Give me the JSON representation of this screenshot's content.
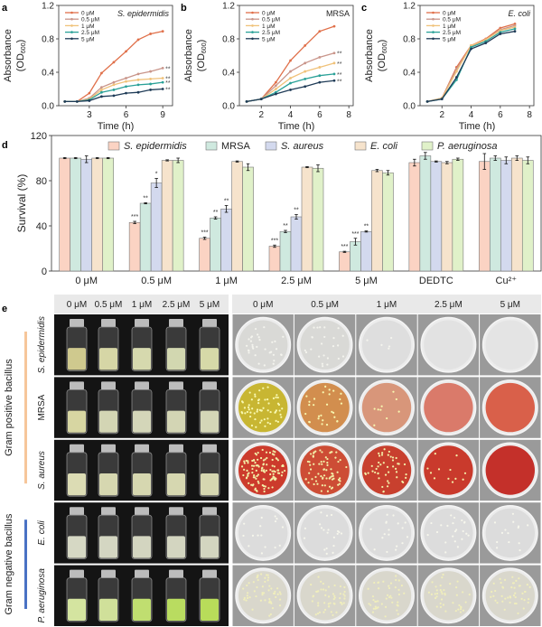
{
  "panel_labels": {
    "a": "a",
    "b": "b",
    "c": "c",
    "d": "d",
    "e": "e"
  },
  "line_legend": [
    "0 μM",
    "0.5 μM",
    "1 μM",
    "2.5 μM",
    "5 μM"
  ],
  "line_colors": [
    "#e0704a",
    "#c9958a",
    "#f0c27a",
    "#2aa198",
    "#1f3b57"
  ],
  "chart_data": [
    {
      "id": "a",
      "type": "line",
      "title": "S. epidermidis",
      "title_italic": true,
      "xlabel": "Time (h)",
      "ylabel": "Absorbance",
      "ylabel2": "(OD",
      "ylabel_sub": "600",
      "ylabel_close": ")",
      "xlim": [
        0.5,
        9.8
      ],
      "ylim": [
        0,
        1.2
      ],
      "xticks": [
        3,
        6,
        9
      ],
      "yticks": [
        0.0,
        0.4,
        0.8,
        1.2
      ],
      "ytick_labels": [
        "0.0",
        "0.4",
        "0.8",
        "1.2"
      ],
      "legend_position": "top-left",
      "x": [
        1,
        2,
        3,
        4,
        5,
        6,
        7,
        8,
        9
      ],
      "series": [
        {
          "name": "0 μM",
          "values": [
            0.05,
            0.05,
            0.15,
            0.39,
            0.52,
            0.65,
            0.79,
            0.86,
            0.89
          ],
          "annotation": ""
        },
        {
          "name": "0.5 μM",
          "values": [
            0.05,
            0.05,
            0.09,
            0.22,
            0.28,
            0.33,
            0.38,
            0.41,
            0.45
          ],
          "annotation": "**"
        },
        {
          "name": "1 μM",
          "values": [
            0.05,
            0.05,
            0.08,
            0.19,
            0.25,
            0.29,
            0.31,
            0.32,
            0.33
          ],
          "annotation": "**"
        },
        {
          "name": "2.5 μM",
          "values": [
            0.05,
            0.05,
            0.07,
            0.16,
            0.19,
            0.23,
            0.25,
            0.26,
            0.28
          ],
          "annotation": "**"
        },
        {
          "name": "5 μM",
          "values": [
            0.05,
            0.05,
            0.06,
            0.11,
            0.12,
            0.15,
            0.16,
            0.19,
            0.2
          ],
          "annotation": "**"
        }
      ]
    },
    {
      "id": "b",
      "type": "line",
      "title": "MRSA",
      "title_italic": false,
      "xlabel": "Time (h)",
      "ylabel": "Absorbance",
      "ylabel2": "(OD",
      "ylabel_sub": "600",
      "ylabel_close": ")",
      "xlim": [
        0.5,
        8.3
      ],
      "ylim": [
        0,
        1.2
      ],
      "xticks": [
        2,
        4,
        6,
        8
      ],
      "yticks": [
        0.0,
        0.4,
        0.8,
        1.2
      ],
      "ytick_labels": [
        "0.0",
        "0.4",
        "0.8",
        "1.2"
      ],
      "legend_position": "top-left",
      "x": [
        1,
        2,
        3,
        4,
        5,
        6,
        7
      ],
      "series": [
        {
          "name": "0 μM",
          "values": [
            0.05,
            0.08,
            0.28,
            0.54,
            0.72,
            0.89,
            0.95
          ],
          "annotation": ""
        },
        {
          "name": "0.5 μM",
          "values": [
            0.05,
            0.08,
            0.24,
            0.41,
            0.51,
            0.58,
            0.63
          ],
          "annotation": "**"
        },
        {
          "name": "1 μM",
          "values": [
            0.05,
            0.08,
            0.2,
            0.33,
            0.41,
            0.46,
            0.51
          ],
          "annotation": "**"
        },
        {
          "name": "2.5 μM",
          "values": [
            0.05,
            0.08,
            0.16,
            0.27,
            0.32,
            0.36,
            0.38
          ],
          "annotation": "**"
        },
        {
          "name": "5 μM",
          "values": [
            0.05,
            0.08,
            0.14,
            0.19,
            0.23,
            0.28,
            0.3
          ],
          "annotation": "**"
        }
      ]
    },
    {
      "id": "c",
      "type": "line",
      "title": "E. coli",
      "title_italic": true,
      "xlabel": "Time (h)",
      "ylabel": "Absorbance",
      "ylabel2": "(OD",
      "ylabel_sub": "600",
      "ylabel_close": ")",
      "xlim": [
        0.5,
        8.3
      ],
      "ylim": [
        0,
        1.2
      ],
      "xticks": [
        2,
        4,
        6,
        8
      ],
      "yticks": [
        0.0,
        0.4,
        0.8,
        1.2
      ],
      "ytick_labels": [
        "0.0",
        "0.4",
        "0.8",
        "1.2"
      ],
      "legend_position": "top-left",
      "x": [
        1,
        2,
        3,
        4,
        5,
        6,
        7
      ],
      "series": [
        {
          "name": "0 μM",
          "values": [
            0.05,
            0.09,
            0.46,
            0.72,
            0.8,
            0.93,
            0.98
          ],
          "annotation": ""
        },
        {
          "name": "0.5 μM",
          "values": [
            0.05,
            0.09,
            0.44,
            0.71,
            0.79,
            0.91,
            0.96
          ],
          "annotation": ""
        },
        {
          "name": "1 μM",
          "values": [
            0.05,
            0.09,
            0.41,
            0.72,
            0.79,
            0.9,
            0.94
          ],
          "annotation": ""
        },
        {
          "name": "2.5 μM",
          "values": [
            0.05,
            0.08,
            0.31,
            0.7,
            0.77,
            0.88,
            0.92
          ],
          "annotation": ""
        },
        {
          "name": "5 μM",
          "values": [
            0.05,
            0.08,
            0.34,
            0.68,
            0.75,
            0.86,
            0.89
          ],
          "annotation": ""
        }
      ]
    },
    {
      "id": "d",
      "type": "bar",
      "title": "",
      "xlabel": "",
      "ylabel": "Survival (%)",
      "ylim": [
        0,
        120
      ],
      "yticks": [
        0,
        40,
        80,
        120
      ],
      "categories": [
        "0 μM",
        "0.5 μM",
        "1 μM",
        "2.5 μM",
        "5 μM",
        "DEDTC",
        "Cu²⁺"
      ],
      "legend_position": "top",
      "series": [
        {
          "name": "S. epidermidis",
          "italic": true,
          "color": "#fbd3c3",
          "values": [
            100,
            43,
            29,
            22,
            17,
            96,
            97
          ],
          "errors": [
            0.5,
            1,
            1,
            1,
            0.5,
            3,
            7
          ],
          "annotations": [
            "",
            "***",
            "***",
            "***",
            "***",
            "",
            ""
          ]
        },
        {
          "name": "MRSA",
          "italic": false,
          "color": "#cfe9df",
          "values": [
            100,
            60,
            47,
            35,
            26,
            102,
            100
          ],
          "errors": [
            0.5,
            0.5,
            1,
            1,
            3,
            3,
            2
          ],
          "annotations": [
            "",
            "**",
            "**",
            "**",
            "***",
            "",
            ""
          ]
        },
        {
          "name": "S. aureus",
          "italic": true,
          "color": "#d3d9ee",
          "values": [
            99,
            78,
            55,
            48,
            35,
            97,
            98
          ],
          "errors": [
            3,
            4,
            3,
            2,
            0.5,
            0.5,
            3
          ],
          "annotations": [
            "",
            "*",
            "**",
            "**",
            "**",
            "",
            ""
          ]
        },
        {
          "name": "E. coli",
          "italic": true,
          "color": "#f6e3cc",
          "values": [
            100,
            98,
            97,
            92,
            89,
            96,
            100
          ],
          "errors": [
            0.5,
            0.5,
            0.5,
            0.5,
            1,
            1,
            2
          ],
          "annotations": [
            "",
            "",
            "",
            "",
            "",
            "",
            ""
          ]
        },
        {
          "name": "P. aeruginosa",
          "italic": true,
          "color": "#e0f1c9",
          "values": [
            100,
            98,
            92,
            91,
            87,
            99,
            98
          ],
          "errors": [
            0.5,
            2,
            3,
            3,
            2,
            1,
            3
          ],
          "annotations": [
            "",
            "",
            "",
            "",
            "",
            "",
            ""
          ]
        }
      ]
    }
  ],
  "panel_e": {
    "concentrations": [
      "0 μM",
      "0.5 μM",
      "1 μM",
      "2.5 μM",
      "5 μM"
    ],
    "groups": [
      {
        "label": "Gram positive bacillus",
        "color": "#f6c69a"
      },
      {
        "label": "Gram negative bacillus",
        "color": "#4a72c4"
      }
    ],
    "rows": [
      {
        "name": "S. epidermidis",
        "italic": true,
        "liquid": [
          "#cfc98e",
          "#d6d6a6",
          "#d6d9ae",
          "#d2d7b0",
          "#d6d9a8"
        ],
        "plate_bg": [
          "#d9d9d6",
          "#d9d9d6",
          "#dedede",
          "#e2e2e2",
          "#e4e4e4"
        ],
        "colonies": [
          32,
          24,
          5,
          0,
          0
        ],
        "colony_color": "#f4f4ee"
      },
      {
        "name": "MRSA",
        "italic": false,
        "liquid": [
          "#d7d6a2",
          "#d3d5b4",
          "#d4d6b9",
          "#d3d5b4",
          "#d4d6b7"
        ],
        "plate_bg": [
          "#c8b632",
          "#d28e4e",
          "#d8967a",
          "#da7a6a",
          "#d9604a"
        ],
        "colonies": [
          60,
          28,
          9,
          0,
          0
        ],
        "colony_color": "#f8f8b0"
      },
      {
        "name": "S. aureus",
        "italic": true,
        "liquid": [
          "#dcdcb4",
          "#d6d7b0",
          "#d6d7b0",
          "#d6d7b0",
          "#d6d7b0"
        ],
        "plate_bg": [
          "#cc3b2c",
          "#cd4d35",
          "#c8402e",
          "#c93a2c",
          "#c4302a"
        ],
        "colonies": [
          110,
          70,
          45,
          12,
          0
        ],
        "colony_color": "#f3f0a8"
      },
      {
        "name": "E. coli",
        "italic": true,
        "liquid": [
          "#d6d8c4",
          "#d4d6c2",
          "#d3d5c0",
          "#d3d5c0",
          "#d3d5c0"
        ],
        "plate_bg": [
          "#dcdcdc",
          "#dcdcdc",
          "#dcdcdc",
          "#dcdcdc",
          "#dcdcdc"
        ],
        "colonies": [
          16,
          20,
          18,
          22,
          14
        ],
        "colony_color": "#f6f6ec"
      },
      {
        "name": "P. aeruginosa",
        "italic": true,
        "liquid": [
          "#d4e4a0",
          "#d0e09a",
          "#c0de70",
          "#b9dc60",
          "#b8dc5a"
        ],
        "plate_bg": [
          "#d9d7cc",
          "#d9d7cc",
          "#d9d7cc",
          "#d9d7cc",
          "#d9d7cc"
        ],
        "colonies": [
          55,
          50,
          45,
          40,
          45
        ],
        "colony_color": "#f0eebc"
      }
    ]
  }
}
